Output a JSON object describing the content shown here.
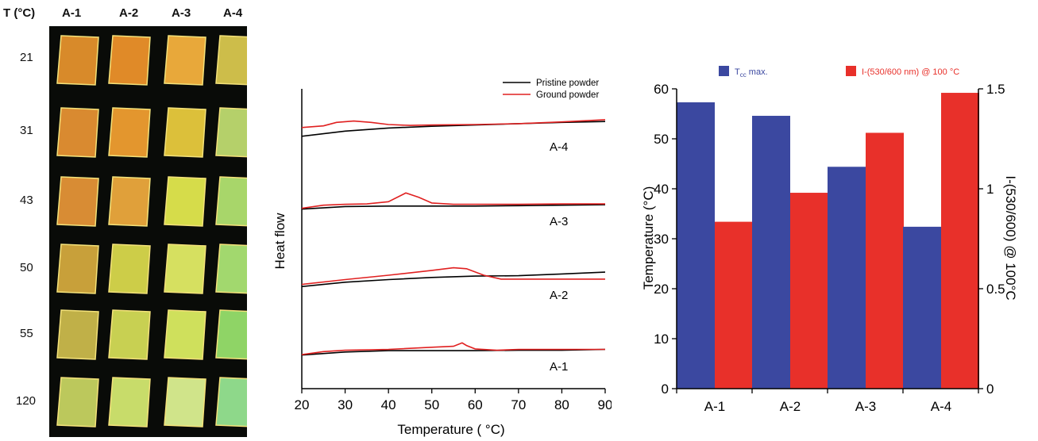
{
  "photo_panel": {
    "header_temp": "T (°C)",
    "columns": [
      "A-1",
      "A-2",
      "A-3",
      "A-4"
    ],
    "rows": [
      "21",
      "31",
      "43",
      "50",
      "55",
      "120"
    ],
    "tile_colors": [
      [
        "#d88a2a",
        "#e08a28",
        "#e8a83a",
        "#cdbd4a"
      ],
      [
        "#d98a30",
        "#e3962e",
        "#dcc03a",
        "#b5d06a"
      ],
      [
        "#d88c34",
        "#e0a03a",
        "#d6dc4a",
        "#a8d66a"
      ],
      [
        "#c8a03a",
        "#cdcd48",
        "#d6e060",
        "#a2d86e"
      ],
      [
        "#c0b048",
        "#c8d052",
        "#cfe05c",
        "#8fd466"
      ],
      [
        "#bcc85c",
        "#c8dc6a",
        "#d0e48a",
        "#8ed88a"
      ]
    ]
  },
  "chart_data": [
    {
      "type": "line",
      "ylabel": "Heat flow",
      "xlabel": "Temperature ( °C)",
      "xlim": [
        20,
        90
      ],
      "xticks": [
        20,
        30,
        40,
        50,
        60,
        70,
        80,
        90
      ],
      "legend": [
        {
          "name": "Pristine powder",
          "color": "#000000"
        },
        {
          "name": "Ground powder",
          "color": "#e02020"
        }
      ],
      "curves": [
        {
          "label": "A-4",
          "pristine": [
            [
              20,
              -7
            ],
            [
              30,
              5
            ],
            [
              40,
              12
            ],
            [
              50,
              16
            ],
            [
              60,
              19
            ],
            [
              70,
              22
            ],
            [
              80,
              25
            ],
            [
              90,
              27
            ]
          ],
          "ground": [
            [
              20,
              13
            ],
            [
              25,
              17
            ],
            [
              28,
              25
            ],
            [
              32,
              28
            ],
            [
              36,
              25
            ],
            [
              40,
              20
            ],
            [
              45,
              18
            ],
            [
              50,
              19
            ],
            [
              60,
              20
            ],
            [
              70,
              22
            ],
            [
              80,
              26
            ],
            [
              90,
              31
            ]
          ]
        },
        {
          "label": "A-3",
          "pristine": [
            [
              20,
              -3
            ],
            [
              30,
              3
            ],
            [
              40,
              4
            ],
            [
              50,
              4
            ],
            [
              60,
              4
            ],
            [
              70,
              5
            ],
            [
              80,
              6
            ],
            [
              90,
              7
            ]
          ],
          "ground": [
            [
              20,
              -1
            ],
            [
              25,
              6
            ],
            [
              30,
              8
            ],
            [
              35,
              9
            ],
            [
              40,
              14
            ],
            [
              44,
              34
            ],
            [
              47,
              24
            ],
            [
              50,
              11
            ],
            [
              55,
              8
            ],
            [
              60,
              8
            ],
            [
              70,
              8
            ],
            [
              80,
              9
            ],
            [
              90,
              9
            ]
          ]
        },
        {
          "label": "A-2",
          "pristine": [
            [
              20,
              -6
            ],
            [
              30,
              4
            ],
            [
              40,
              10
            ],
            [
              50,
              15
            ],
            [
              60,
              18
            ],
            [
              70,
              19
            ],
            [
              80,
              23
            ],
            [
              90,
              27
            ]
          ],
          "ground": [
            [
              20,
              -1
            ],
            [
              30,
              10
            ],
            [
              40,
              20
            ],
            [
              50,
              31
            ],
            [
              55,
              37
            ],
            [
              58,
              35
            ],
            [
              62,
              20
            ],
            [
              66,
              11
            ],
            [
              70,
              11
            ],
            [
              80,
              11
            ],
            [
              90,
              11
            ]
          ]
        },
        {
          "label": "A-1",
          "pristine": [
            [
              20,
              -3
            ],
            [
              30,
              4
            ],
            [
              40,
              7
            ],
            [
              50,
              7
            ],
            [
              60,
              7
            ],
            [
              70,
              8
            ],
            [
              80,
              8
            ],
            [
              90,
              10
            ]
          ],
          "ground": [
            [
              20,
              -2
            ],
            [
              25,
              5
            ],
            [
              30,
              8
            ],
            [
              40,
              10
            ],
            [
              50,
              15
            ],
            [
              55,
              17
            ],
            [
              57,
              25
            ],
            [
              58,
              19
            ],
            [
              60,
              11
            ],
            [
              65,
              8
            ],
            [
              70,
              10
            ],
            [
              80,
              10
            ],
            [
              90,
              10
            ]
          ]
        }
      ]
    },
    {
      "type": "bar",
      "categories": [
        "A-1",
        "A-2",
        "A-3",
        "A-4"
      ],
      "ylabel": "Temperature (°C)",
      "y2label": "I-(530/600) @ 100°C",
      "ylim": [
        0,
        60
      ],
      "y2lim": [
        0,
        1.5
      ],
      "yticks": [
        0,
        10,
        20,
        30,
        40,
        50,
        60
      ],
      "y2ticks": [
        "0",
        "0.5",
        "1",
        "1.5"
      ],
      "series": [
        {
          "name_main": "T",
          "name_sub": "cc",
          "name_rest": " max.",
          "axis": "left",
          "color": "#3b48a0",
          "values": [
            57.3,
            54.6,
            44.4,
            32.4
          ]
        },
        {
          "name_main": "I-(530/600 nm) @ 100 °C",
          "axis": "right",
          "color": "#e8302a",
          "values": [
            0.835,
            0.98,
            1.28,
            1.48
          ]
        }
      ]
    }
  ]
}
